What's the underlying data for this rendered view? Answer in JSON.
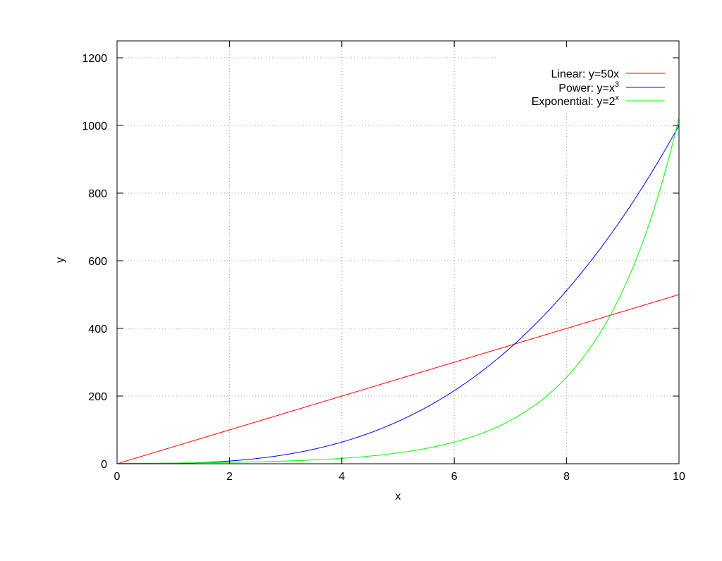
{
  "chart_data": {
    "type": "line",
    "title": "",
    "xlabel": "x",
    "ylabel": "y",
    "xlim": [
      0,
      10
    ],
    "ylim": [
      0,
      1250
    ],
    "grid": true,
    "legend_position": "top-right",
    "x_ticks": [
      0,
      2,
      4,
      6,
      8,
      10
    ],
    "y_ticks": [
      0,
      200,
      400,
      600,
      800,
      1000,
      1200
    ],
    "x_tick_labels": [
      "0",
      "2",
      "4",
      "6",
      "8",
      "10"
    ],
    "y_tick_labels": [
      "0",
      "200",
      "400",
      "600",
      "800",
      "1000",
      "1200"
    ],
    "series": [
      {
        "name": "Linear: y=50x",
        "legend_base": "Linear: y=50x",
        "legend_sup": "",
        "color": "#ff0000",
        "x": [
          0,
          2,
          4,
          6,
          8,
          10
        ],
        "y": [
          0,
          100,
          200,
          300,
          400,
          500
        ]
      },
      {
        "name": "Power: y=x3",
        "legend_base": "Power: y=x",
        "legend_sup": "3",
        "color": "#0000ff",
        "x": [
          0,
          1,
          2,
          3,
          4,
          5,
          6,
          7,
          8,
          9,
          10
        ],
        "y": [
          0,
          1,
          8,
          27,
          64,
          125,
          216,
          343,
          512,
          729,
          1000
        ]
      },
      {
        "name": "Exponential: y=2x",
        "legend_base": "Exponential: y=2",
        "legend_sup": "x",
        "color": "#00ff00",
        "x": [
          0,
          1,
          2,
          3,
          4,
          5,
          6,
          7,
          8,
          9,
          10
        ],
        "y": [
          1,
          2,
          4,
          8,
          16,
          32,
          64,
          128,
          256,
          512,
          1024
        ]
      }
    ]
  }
}
